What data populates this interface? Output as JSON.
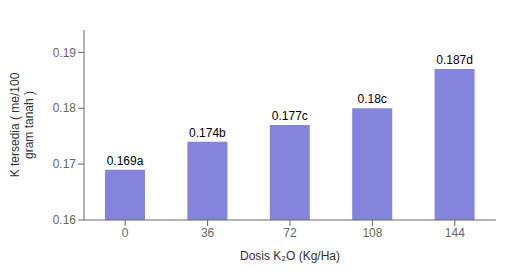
{
  "chart_data": {
    "type": "bar",
    "categories": [
      "0",
      "36",
      "72",
      "108",
      "144"
    ],
    "values": [
      0.169,
      0.174,
      0.177,
      0.18,
      0.187
    ],
    "value_labels": [
      "0.169a",
      "0.174b",
      "0.177c",
      "0.18c",
      "0.187d"
    ],
    "data_labels": true,
    "color": "#8484dd",
    "xlabel": "Dosis K₂O (Kg/Ha)",
    "ylabel": "K tersedia ( me/100\ngram tanah )",
    "ylim": [
      0.16,
      0.194
    ],
    "yticks": [
      0.16,
      0.17,
      0.18,
      0.19
    ]
  }
}
